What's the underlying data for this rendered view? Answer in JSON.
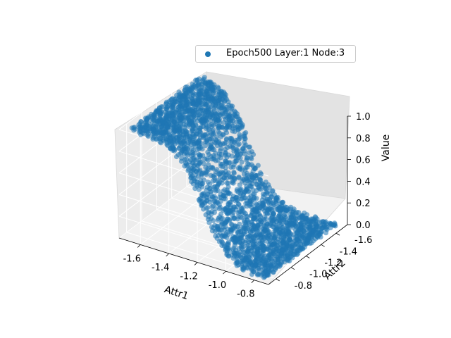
{
  "chart_data": {
    "type": "scatter",
    "projection": "3d",
    "series": [
      {
        "name": "Epoch500 Layer:1 Node:3",
        "color": "#1f77b4",
        "surface": "sigmoid step along Attr1, near-flat in Attr2",
        "sample_values": [
          {
            "attr1": -1.7,
            "attr2": -0.8,
            "value": 1.0
          },
          {
            "attr1": -1.5,
            "attr2": -1.2,
            "value": 0.95
          },
          {
            "attr1": -1.3,
            "attr2": -1.2,
            "value": 0.5
          },
          {
            "attr1": -1.1,
            "attr2": -1.2,
            "value": 0.1
          },
          {
            "attr1": -0.8,
            "attr2": -1.7,
            "value": 0.0
          }
        ]
      }
    ],
    "xlabel": "Attr1",
    "ylabel": "Attr2",
    "zlabel": "Value",
    "xlim": [
      -1.75,
      -0.7
    ],
    "ylim": [
      -1.75,
      -0.7
    ],
    "zlim": [
      0.0,
      1.0
    ],
    "xticks": [
      "-1.6",
      "-1.4",
      "-1.2",
      "-1.0",
      "-0.8"
    ],
    "yticks": [
      "-1.6",
      "-1.4",
      "-1.2",
      "-1.0",
      "-0.8"
    ],
    "zticks": [
      "0.0",
      "0.2",
      "0.4",
      "0.6",
      "0.8",
      "1.0"
    ],
    "grid": true,
    "legend_position": "top-right"
  }
}
